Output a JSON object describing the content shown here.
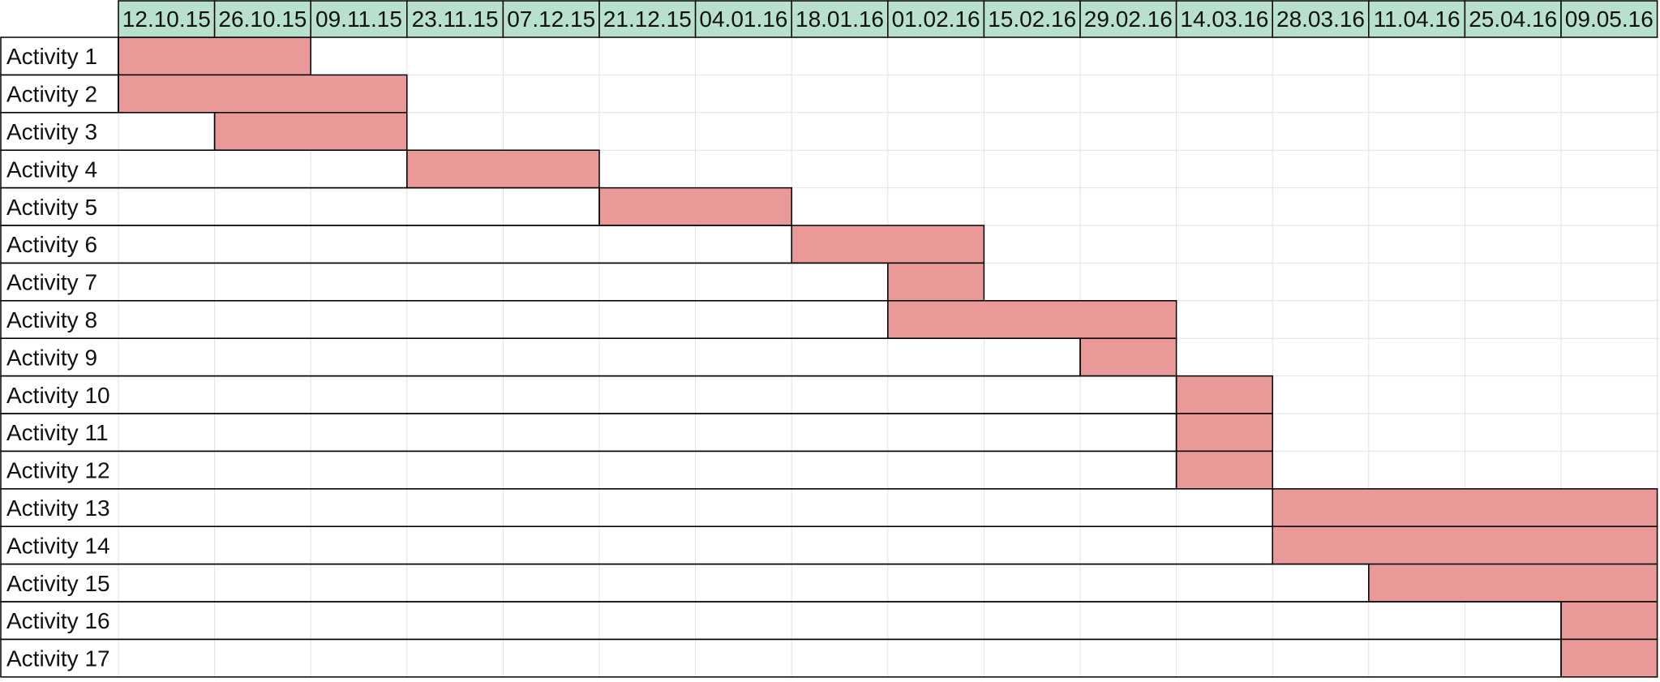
{
  "chart_data": {
    "type": "gantt",
    "columns": [
      "12.10.15",
      "26.10.15",
      "09.11.15",
      "23.11.15",
      "07.12.15",
      "21.12.15",
      "04.01.16",
      "18.01.16",
      "01.02.16",
      "15.02.16",
      "29.02.16",
      "14.03.16",
      "28.03.16",
      "11.04.16",
      "25.04.16",
      "09.05.16"
    ],
    "tasks": [
      {
        "label": "Activity 1",
        "start": "12.10.15",
        "end": "09.11.15"
      },
      {
        "label": "Activity 2",
        "start": "12.10.15",
        "end": "23.11.15"
      },
      {
        "label": "Activity 3",
        "start": "26.10.15",
        "end": "23.11.15"
      },
      {
        "label": "Activity 4",
        "start": "23.11.15",
        "end": "21.12.15"
      },
      {
        "label": "Activity 5",
        "start": "21.12.15",
        "end": "18.01.16"
      },
      {
        "label": "Activity 6",
        "start": "18.01.16",
        "end": "15.02.16"
      },
      {
        "label": "Activity 7",
        "start": "01.02.16",
        "end": "15.02.16"
      },
      {
        "label": "Activity 8",
        "start": "01.02.16",
        "end": "14.03.16"
      },
      {
        "label": "Activity 9",
        "start": "29.02.16",
        "end": "14.03.16"
      },
      {
        "label": "Activity 10",
        "start": "14.03.16",
        "end": "28.03.16"
      },
      {
        "label": "Activity 11",
        "start": "14.03.16",
        "end": "28.03.16"
      },
      {
        "label": "Activity 12",
        "start": "14.03.16",
        "end": "28.03.16"
      },
      {
        "label": "Activity 13",
        "start": "28.03.16",
        "end": "23.05.16"
      },
      {
        "label": "Activity 14",
        "start": "28.03.16",
        "end": "23.05.16"
      },
      {
        "label": "Activity 15",
        "start": "11.04.16",
        "end": "23.05.16"
      },
      {
        "label": "Activity 16",
        "start": "09.05.16",
        "end": "23.05.16"
      },
      {
        "label": "Activity 17",
        "start": "09.05.16",
        "end": "23.05.16"
      }
    ],
    "colors": {
      "header_fill": "#b7e1cd",
      "bar_fill": "#ea9999",
      "grid_light": "#e2e2e2",
      "border_dark": "#000000"
    },
    "grid": true
  }
}
